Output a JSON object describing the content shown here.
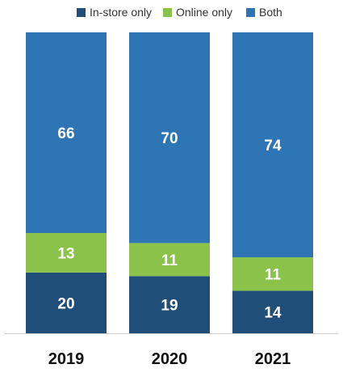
{
  "chart_data": {
    "type": "bar",
    "stacked": true,
    "categories": [
      "2019",
      "2020",
      "2021"
    ],
    "series": [
      {
        "name": "In-store only",
        "color": "#1f4e79",
        "values": [
          20,
          19,
          14
        ]
      },
      {
        "name": "Online only",
        "color": "#8bc34a",
        "values": [
          13,
          11,
          11
        ]
      },
      {
        "name": "Both",
        "color": "#2e75b6",
        "values": [
          66,
          70,
          74
        ]
      }
    ],
    "title": "",
    "xlabel": "",
    "ylabel": "",
    "ylim": [
      0,
      100
    ],
    "legend": "top",
    "grid": false
  }
}
